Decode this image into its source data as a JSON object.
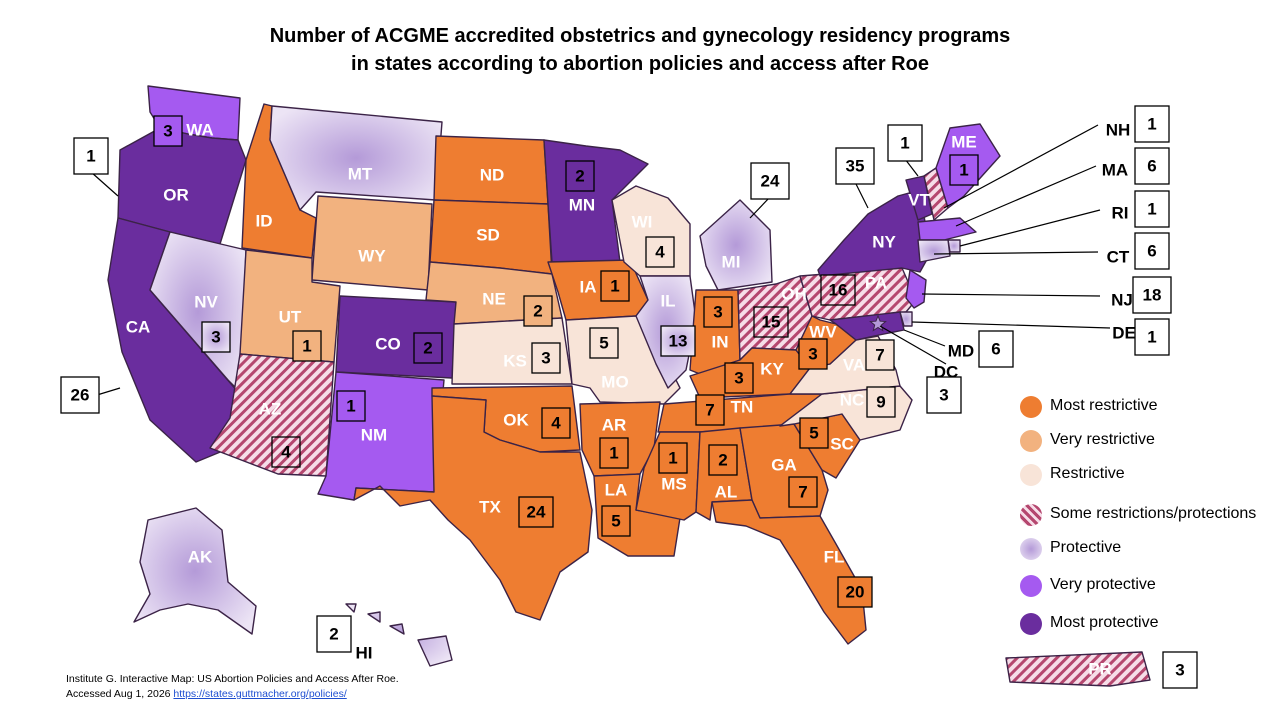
{
  "title": {
    "line1": "Number of ACGME accredited obstetrics and gynecology residency programs",
    "line2": "in states according to abortion policies and access after Roe"
  },
  "colors": {
    "most_restrictive": "#ee7d31",
    "very_restrictive": "#f2b27f",
    "restrictive": "#f8e4d8",
    "some_restrictions_protections": "#e8b4c8",
    "protective": "#c8b4e0",
    "very_protective": "#a55af0",
    "most_protective": "#6a2d9e"
  },
  "legend": [
    {
      "key": "most_restrictive",
      "label": "Most restrictive"
    },
    {
      "key": "very_restrictive",
      "label": "Very restrictive"
    },
    {
      "key": "restrictive",
      "label": "Restrictive"
    },
    {
      "key": "some_restrictions_protections",
      "label": "Some restrictions/protections"
    },
    {
      "key": "protective",
      "label": "Protective"
    },
    {
      "key": "very_protective",
      "label": "Very protective"
    },
    {
      "key": "most_protective",
      "label": "Most protective"
    }
  ],
  "states": [
    {
      "abbr": "WA",
      "category": "very_protective",
      "programs": "3"
    },
    {
      "abbr": "OR",
      "category": "most_protective",
      "programs": "1"
    },
    {
      "abbr": "CA",
      "category": "most_protective",
      "programs": "26"
    },
    {
      "abbr": "NV",
      "category": "protective",
      "programs": "3"
    },
    {
      "abbr": "ID",
      "category": "most_restrictive",
      "programs": ""
    },
    {
      "abbr": "MT",
      "category": "protective",
      "programs": ""
    },
    {
      "abbr": "WY",
      "category": "very_restrictive",
      "programs": ""
    },
    {
      "abbr": "UT",
      "category": "very_restrictive",
      "programs": "1"
    },
    {
      "abbr": "AZ",
      "category": "some_restrictions_protections",
      "programs": "4"
    },
    {
      "abbr": "CO",
      "category": "most_protective",
      "programs": "2"
    },
    {
      "abbr": "NM",
      "category": "very_protective",
      "programs": "1"
    },
    {
      "abbr": "ND",
      "category": "most_restrictive",
      "programs": ""
    },
    {
      "abbr": "SD",
      "category": "most_restrictive",
      "programs": ""
    },
    {
      "abbr": "NE",
      "category": "very_restrictive",
      "programs": "2"
    },
    {
      "abbr": "KS",
      "category": "restrictive",
      "programs": "3"
    },
    {
      "abbr": "OK",
      "category": "most_restrictive",
      "programs": "4"
    },
    {
      "abbr": "TX",
      "category": "most_restrictive",
      "programs": "24"
    },
    {
      "abbr": "MN",
      "category": "most_protective",
      "programs": "2"
    },
    {
      "abbr": "IA",
      "category": "most_restrictive",
      "programs": "1"
    },
    {
      "abbr": "MO",
      "category": "restrictive",
      "programs": "5"
    },
    {
      "abbr": "AR",
      "category": "most_restrictive",
      "programs": "1"
    },
    {
      "abbr": "LA",
      "category": "most_restrictive",
      "programs": "5"
    },
    {
      "abbr": "WI",
      "category": "restrictive",
      "programs": "4"
    },
    {
      "abbr": "IL",
      "category": "protective",
      "programs": "13"
    },
    {
      "abbr": "MI",
      "category": "protective",
      "programs": "24"
    },
    {
      "abbr": "IN",
      "category": "most_restrictive",
      "programs": "3"
    },
    {
      "abbr": "OH",
      "category": "some_restrictions_protections",
      "programs": "15"
    },
    {
      "abbr": "KY",
      "category": "most_restrictive",
      "programs": "3"
    },
    {
      "abbr": "TN",
      "category": "most_restrictive",
      "programs": "7"
    },
    {
      "abbr": "MS",
      "category": "most_restrictive",
      "programs": "1"
    },
    {
      "abbr": "AL",
      "category": "most_restrictive",
      "programs": "2"
    },
    {
      "abbr": "GA",
      "category": "most_restrictive",
      "programs": "7"
    },
    {
      "abbr": "FL",
      "category": "most_restrictive",
      "programs": "20"
    },
    {
      "abbr": "SC",
      "category": "most_restrictive",
      "programs": "5"
    },
    {
      "abbr": "NC",
      "category": "restrictive",
      "programs": "9"
    },
    {
      "abbr": "VA",
      "category": "restrictive",
      "programs": "7"
    },
    {
      "abbr": "WV",
      "category": "most_restrictive",
      "programs": "3"
    },
    {
      "abbr": "PA",
      "category": "some_restrictions_protections",
      "programs": "16"
    },
    {
      "abbr": "NY",
      "category": "most_protective",
      "programs": "35"
    },
    {
      "abbr": "VT",
      "category": "most_protective",
      "programs": "1"
    },
    {
      "abbr": "NH",
      "category": "some_restrictions_protections",
      "programs": "1"
    },
    {
      "abbr": "ME",
      "category": "very_protective",
      "programs": "1"
    },
    {
      "abbr": "MA",
      "category": "very_protective",
      "programs": "6"
    },
    {
      "abbr": "RI",
      "category": "protective",
      "programs": "1"
    },
    {
      "abbr": "CT",
      "category": "protective",
      "programs": "6"
    },
    {
      "abbr": "NJ",
      "category": "very_protective",
      "programs": "18"
    },
    {
      "abbr": "DE",
      "category": "protective",
      "programs": "1"
    },
    {
      "abbr": "MD",
      "category": "most_protective",
      "programs": "6"
    },
    {
      "abbr": "DC",
      "category": "protective",
      "programs": "3"
    },
    {
      "abbr": "AK",
      "category": "protective",
      "programs": ""
    },
    {
      "abbr": "HI",
      "category": "protective",
      "programs": "2"
    },
    {
      "abbr": "PR",
      "category": "some_restrictions_protections",
      "programs": "3"
    }
  ],
  "citation": {
    "line1": "Institute G. Interactive Map: US Abortion Policies and Access After Roe.",
    "line2_prefix": "Accessed Aug 1, 2026 ",
    "link": "https://states.guttmacher.org/policies/"
  }
}
